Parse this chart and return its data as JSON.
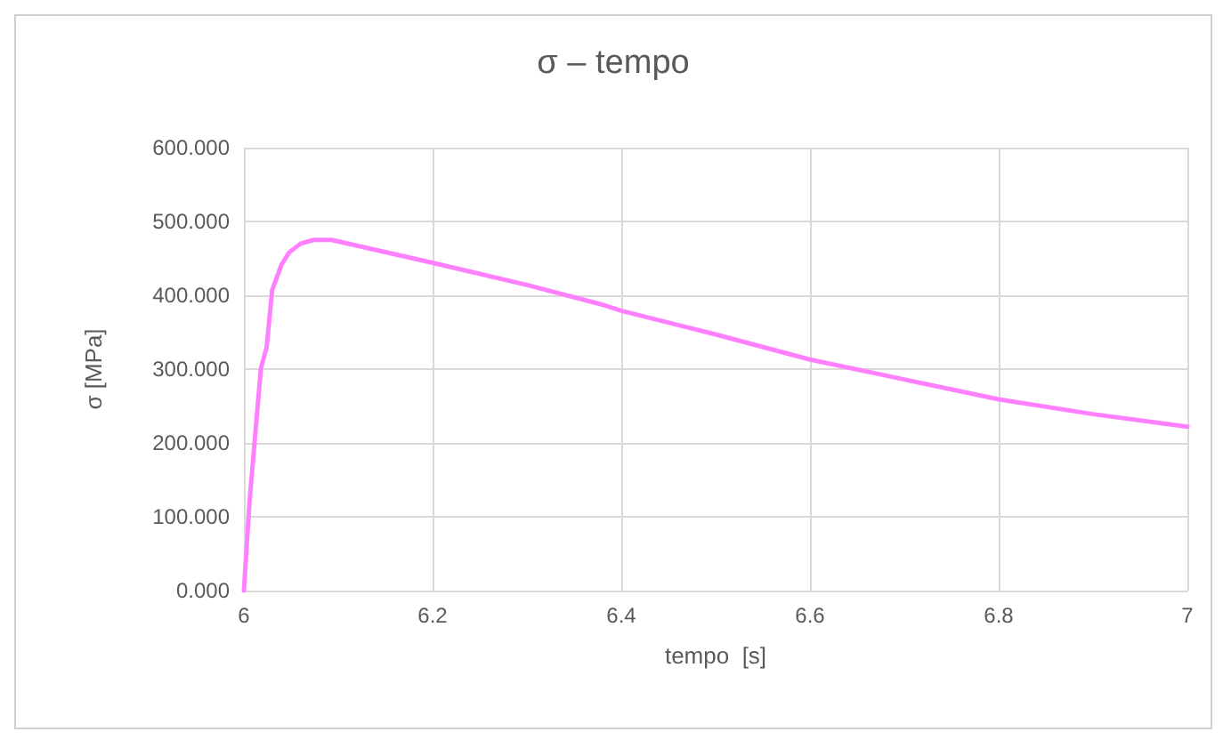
{
  "chart_data": {
    "type": "line",
    "title": "σ – tempo",
    "xlabel": "tempo  [s]",
    "ylabel": "σ [MPa]",
    "xlim": [
      6,
      7
    ],
    "xticks": [
      6,
      6.2,
      6.4,
      6.6,
      6.8,
      7
    ],
    "ylim": [
      0,
      600
    ],
    "yticks": [
      {
        "value": 0,
        "label": "0.000"
      },
      {
        "value": 100,
        "label": "100.000"
      },
      {
        "value": 200,
        "label": "200.000"
      },
      {
        "value": 300,
        "label": "300.000"
      },
      {
        "value": 400,
        "label": "400.000"
      },
      {
        "value": 500,
        "label": "500.000"
      },
      {
        "value": 600,
        "label": "600.000"
      }
    ],
    "grid": true,
    "marker": "none",
    "line_style": "solid",
    "series": [
      {
        "color": "#ff80ff",
        "x": [
          6,
          6.006,
          6.018,
          6.024,
          6.03,
          6.04,
          6.048,
          6.06,
          6.074,
          6.093,
          6.2,
          6.3,
          6.378,
          6.4,
          6.5,
          6.6,
          6.7,
          6.8,
          6.9,
          7
        ],
        "values": [
          0,
          121,
          301,
          329,
          407,
          442,
          458,
          470,
          475,
          475,
          444,
          414,
          388,
          379,
          347,
          313,
          286,
          259,
          239,
          222
        ]
      }
    ]
  }
}
